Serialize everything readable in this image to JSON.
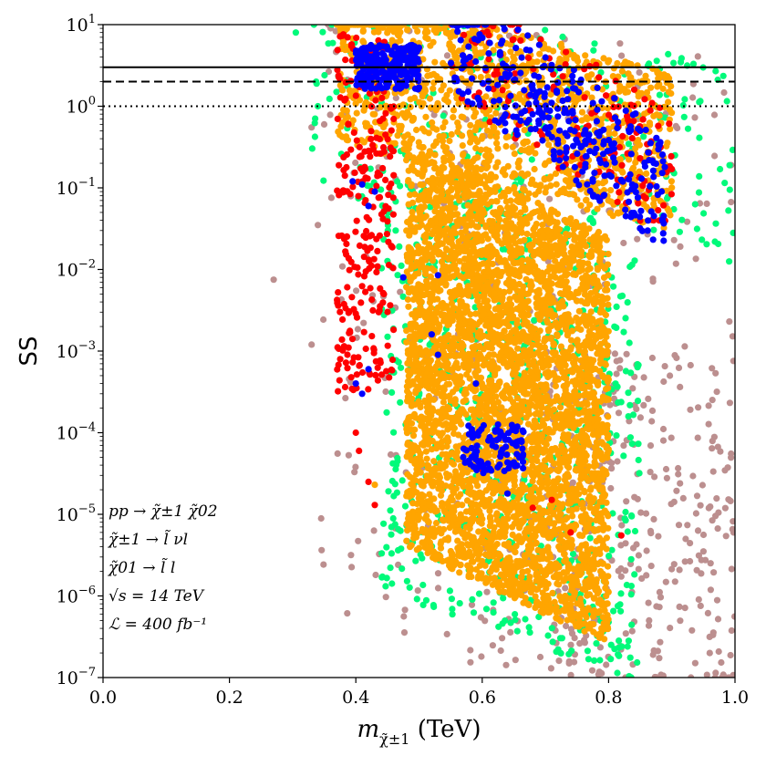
{
  "chart_data": {
    "type": "scatter",
    "title": "",
    "xlabel": "m_{χ̃±1} (TeV)",
    "ylabel": "SS",
    "xlim": [
      0.0,
      1.0
    ],
    "ylim": [
      1e-07,
      10
    ],
    "yscale": "log",
    "x_ticks": [
      0.0,
      0.2,
      0.4,
      0.6,
      0.8,
      1.0
    ],
    "x_tick_labels": [
      "0.0",
      "0.2",
      "0.4",
      "0.6",
      "0.8",
      "1.0"
    ],
    "y_ticks": [
      1e-07,
      1e-06,
      1e-05,
      0.0001,
      0.001,
      0.01,
      0.1,
      1,
      10
    ],
    "y_tick_labels": [
      {
        "base": "10",
        "exp": "−7"
      },
      {
        "base": "10",
        "exp": "−6"
      },
      {
        "base": "10",
        "exp": "−5"
      },
      {
        "base": "10",
        "exp": "−4"
      },
      {
        "base": "10",
        "exp": "−3"
      },
      {
        "base": "10",
        "exp": "−2"
      },
      {
        "base": "10",
        "exp": "−1"
      },
      {
        "base": "10",
        "exp": "0"
      },
      {
        "base": "10",
        "exp": "1"
      }
    ],
    "reference_lines": [
      {
        "y": 3.0,
        "style": "solid",
        "color": "#000000"
      },
      {
        "y": 2.0,
        "style": "dashed",
        "color": "#000000"
      },
      {
        "y": 1.0,
        "style": "dotted",
        "color": "#000000"
      }
    ],
    "series": [
      {
        "name": "brown",
        "color": "#bc8f8f",
        "regions": [
          {
            "x": [
              0.34,
              1.0
            ],
            "logy": [
              -7.0,
              1.0
            ],
            "n": 380,
            "slant": 0.9
          },
          {
            "x": [
              0.7,
              1.0
            ],
            "logy": [
              -7.0,
              -3.0
            ],
            "n": 220,
            "slant": 0.0
          }
        ],
        "points": [
          [
            0.27,
            0.0075
          ],
          [
            0.33,
            0.0012
          ],
          [
            0.34,
            0.035
          ],
          [
            0.33,
            0.55
          ],
          [
            0.35,
            0.6
          ],
          [
            0.99,
            1e-07
          ],
          [
            0.96,
            2e-07
          ]
        ]
      },
      {
        "name": "green",
        "color": "#00fa7a",
        "regions": [
          {
            "x": [
              0.44,
              0.85
            ],
            "logy": [
              -6.5,
              -1.3
            ],
            "n": 700,
            "slant": 1.1
          },
          {
            "x": [
              0.33,
              1.0
            ],
            "logy": [
              -1.6,
              1.0
            ],
            "n": 260,
            "slant": 1.0
          }
        ],
        "points": [
          [
            0.305,
            8.0
          ],
          [
            0.34,
            1.0
          ],
          [
            0.53,
            8.0
          ],
          [
            0.76,
            6e-07
          ],
          [
            0.83,
            2.4e-07
          ]
        ]
      },
      {
        "name": "orange",
        "color": "#ffa500",
        "regions": [
          {
            "x": [
              0.48,
              0.8
            ],
            "logy": [
              -6.0,
              -1.0
            ],
            "n": 4200,
            "slant": 1.2
          },
          {
            "x": [
              0.37,
              0.9
            ],
            "logy": [
              -1.0,
              0.95
            ],
            "n": 1200,
            "slant": 1.1
          }
        ],
        "points": [
          [
            0.51,
            8.0
          ],
          [
            0.55,
            7.0
          ],
          [
            0.43,
            2.3e-05
          ],
          [
            0.63,
            2e-05
          ]
        ]
      },
      {
        "name": "red",
        "color": "#ff0000",
        "regions": [
          {
            "x": [
              0.37,
              0.46
            ],
            "logy": [
              -3.5,
              0.9
            ],
            "n": 260,
            "slant": 0.0
          },
          {
            "x": [
              0.55,
              0.9
            ],
            "logy": [
              -0.8,
              0.8
            ],
            "n": 170,
            "slant": 1.8
          }
        ],
        "points": [
          [
            0.4,
            0.0001
          ],
          [
            0.405,
            6e-05
          ],
          [
            0.43,
            1.3e-05
          ],
          [
            0.42,
            2.5e-05
          ],
          [
            0.68,
            1.2e-05
          ],
          [
            0.82,
            5.5e-06
          ],
          [
            0.74,
            6e-06
          ],
          [
            0.71,
            1.5e-05
          ],
          [
            0.6,
            3.5e-05
          ],
          [
            0.9,
            0.17
          ]
        ]
      },
      {
        "name": "blue",
        "color": "#0000ff",
        "regions": [
          {
            "x": [
              0.4,
              0.5
            ],
            "logy": [
              0.2,
              0.75
            ],
            "n": 240,
            "slant": 0.0
          },
          {
            "x": [
              0.55,
              0.89
            ],
            "logy": [
              -0.8,
              0.6
            ],
            "n": 320,
            "slant": 1.9
          },
          {
            "x": [
              0.57,
              0.67
            ],
            "logy": [
              -4.5,
              -3.9
            ],
            "n": 90,
            "slant": 0.0
          }
        ],
        "points": [
          [
            0.395,
            0.12
          ],
          [
            0.41,
            0.11
          ],
          [
            0.42,
            0.06
          ],
          [
            0.43,
            0.09
          ],
          [
            0.475,
            0.008
          ],
          [
            0.52,
            0.0016
          ],
          [
            0.53,
            0.0009
          ],
          [
            0.42,
            0.0006
          ],
          [
            0.41,
            0.0003
          ],
          [
            0.4,
            0.0004
          ],
          [
            0.59,
            0.0004
          ],
          [
            0.57,
            5e-05
          ],
          [
            0.64,
            1.8e-05
          ],
          [
            0.53,
            0.0085
          ]
        ]
      }
    ],
    "annotations": [
      "pp → χ̃±1 χ̃02",
      "χ̃±1 → l̃ νl",
      "χ̃01 → l̃ l",
      "√s = 14 TeV",
      "ℒ = 400 fb⁻¹"
    ]
  }
}
